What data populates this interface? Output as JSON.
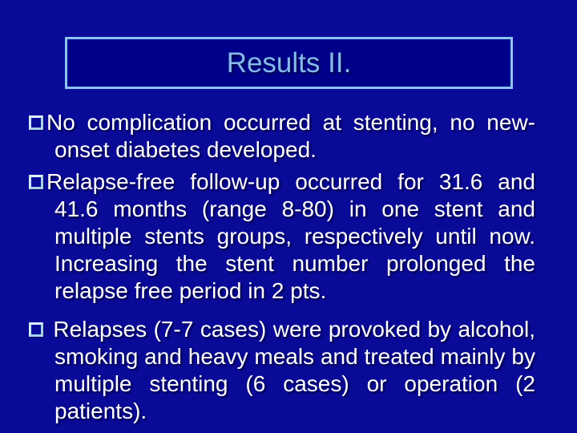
{
  "slide": {
    "title": "Results II.",
    "bullets": [
      {
        "text": "No complication occurred at stenting, no new-onset diabetes developed."
      },
      {
        "text": "Relapse-free follow-up occurred for 31.6 and 41.6 months (range 8-80) in one stent and multiple stents groups, respectively until now. Increasing the stent number prolonged the relapse free period in 2 pts."
      },
      {
        "text": " Relapses (7-7 cases) were provoked by alcohol, smoking and heavy meals and treated mainly by multiple stenting (6 cases) or operation (2 patients)."
      }
    ],
    "colors": {
      "background": "#0a0a99",
      "title_box_fill": "#00008b",
      "title_box_border": "#8cc4f0",
      "title_text": "#85b9ec",
      "body_text": "#ffffff",
      "bullet_square": "#bfe2f2"
    }
  }
}
